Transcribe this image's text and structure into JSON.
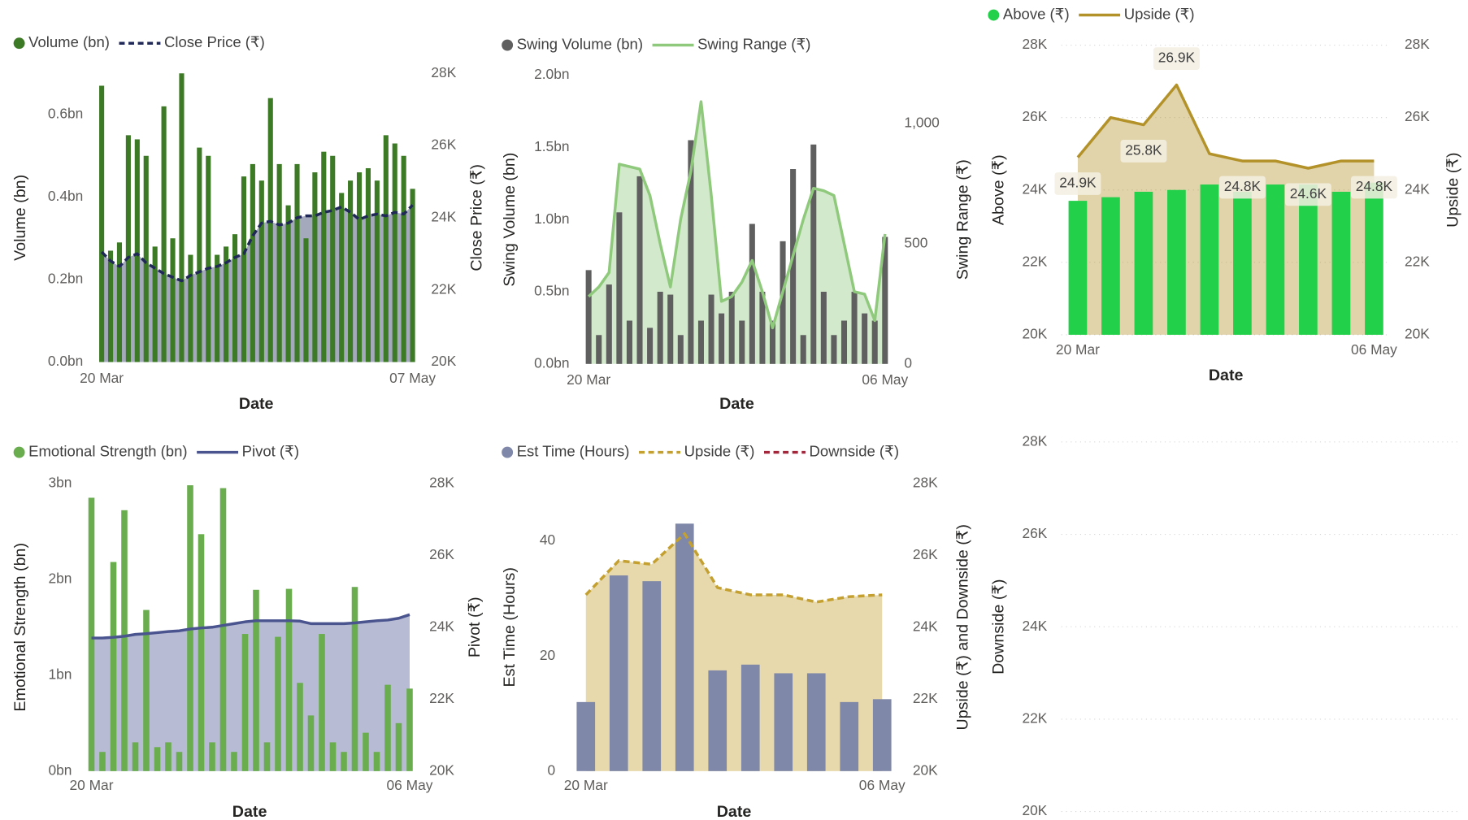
{
  "chart_data": [
    {
      "type": "combo",
      "x_label": "Date",
      "y_label": "Volume (bn)",
      "y2_label": "Close Price (₹)",
      "categories": [
        "20 Mar",
        null,
        null,
        null,
        null,
        null,
        null,
        null,
        null,
        null,
        null,
        null,
        null,
        null,
        null,
        null,
        null,
        null,
        null,
        null,
        null,
        null,
        null,
        null,
        null,
        null,
        null,
        null,
        null,
        null,
        null,
        null,
        null,
        null,
        null,
        "07 May"
      ],
      "ylim": [
        0,
        0.7
      ],
      "yticks": [
        {
          "value": 0,
          "label": "0.0bn"
        },
        {
          "value": 0.2,
          "label": "0.2bn"
        },
        {
          "value": 0.4,
          "label": "0.4bn"
        },
        {
          "value": 0.6,
          "label": "0.6bn"
        }
      ],
      "y2lim": [
        20000,
        28000
      ],
      "y2ticks": [
        {
          "value": 20000,
          "label": "20K"
        },
        {
          "value": 22000,
          "label": "22K"
        },
        {
          "value": 24000,
          "label": "24K"
        },
        {
          "value": 26000,
          "label": "26K"
        },
        {
          "value": 28000,
          "label": "28K"
        }
      ],
      "series": [
        {
          "name": "Volume (bn)",
          "kind": "bar",
          "color": "#3d7a26",
          "values": [
            0.67,
            0.27,
            0.29,
            0.55,
            0.54,
            0.5,
            0.28,
            0.62,
            0.3,
            0.7,
            0.26,
            0.52,
            0.5,
            0.26,
            0.28,
            0.31,
            0.45,
            0.48,
            0.44,
            0.64,
            0.48,
            0.38,
            0.48,
            0.3,
            0.46,
            0.51,
            0.5,
            0.41,
            0.44,
            0.46,
            0.47,
            0.44,
            0.55,
            0.53,
            0.5,
            0.42
          ]
        },
        {
          "name": "Close Price (₹)",
          "kind": "area",
          "dash": true,
          "axis": "y2",
          "color": "#1f2857",
          "values": [
            23050,
            22800,
            22650,
            22900,
            23000,
            22750,
            22600,
            22450,
            22350,
            22250,
            22400,
            22500,
            22600,
            22650,
            22750,
            22900,
            23000,
            23500,
            23850,
            23900,
            23800,
            23850,
            24000,
            24050,
            24050,
            24150,
            24200,
            24300,
            24150,
            23950,
            24050,
            24100,
            24050,
            24150,
            24100,
            24350
          ]
        }
      ]
    },
    {
      "type": "combo",
      "x_label": "Date",
      "y_label": "Swing Volume (bn)",
      "y2_label": "Swing Range (₹)",
      "categories": [
        "20 Mar",
        null,
        null,
        null,
        null,
        null,
        null,
        null,
        null,
        null,
        null,
        null,
        null,
        null,
        null,
        null,
        null,
        null,
        null,
        null,
        null,
        null,
        null,
        null,
        null,
        null,
        null,
        null,
        null,
        "06 May"
      ],
      "ylim": [
        0,
        2
      ],
      "yticks": [
        {
          "value": 0,
          "label": "0.0bn"
        },
        {
          "value": 0.5,
          "label": "0.5bn"
        },
        {
          "value": 1,
          "label": "1.0bn"
        },
        {
          "value": 1.5,
          "label": "1.5bn"
        },
        {
          "value": 2,
          "label": "2.0bn"
        }
      ],
      "y2lim": [
        0,
        1200
      ],
      "y2ticks": [
        0,
        500,
        {
          "value": 1000,
          "label": "1,000"
        }
      ],
      "series": [
        {
          "name": "Swing Volume (bn)",
          "kind": "bar",
          "color": "#5f5f5f",
          "values": [
            0.65,
            0.2,
            0.55,
            1.05,
            0.3,
            1.3,
            0.25,
            0.5,
            0.48,
            0.2,
            1.55,
            0.3,
            0.48,
            0.35,
            0.5,
            0.3,
            0.97,
            0.5,
            0.3,
            0.85,
            1.35,
            0.2,
            1.52,
            0.5,
            0.2,
            0.3,
            0.5,
            0.35,
            0.3,
            0.88
          ]
        },
        {
          "name": "Swing Range (₹)",
          "kind": "area",
          "axis": "y2",
          "color": "#8fc97c",
          "values": [
            280,
            320,
            380,
            830,
            820,
            810,
            700,
            500,
            320,
            600,
            800,
            1090,
            700,
            260,
            280,
            340,
            430,
            300,
            150,
            300,
            450,
            600,
            730,
            720,
            700,
            500,
            300,
            290,
            180,
            540
          ]
        }
      ]
    },
    {
      "type": "combo",
      "x_label": "Date",
      "y_label": "Above (₹)",
      "y2_label": "Upside (₹)",
      "grid": true,
      "categories": [
        "20 Mar",
        null,
        null,
        null,
        null,
        null,
        null,
        null,
        null,
        "06 May"
      ],
      "ylim": [
        20000,
        28000
      ],
      "yticks": [
        {
          "value": 20000,
          "label": "20K"
        },
        {
          "value": 22000,
          "label": "22K"
        },
        {
          "value": 24000,
          "label": "24K"
        },
        {
          "value": 26000,
          "label": "26K"
        },
        {
          "value": 28000,
          "label": "28K"
        }
      ],
      "y2lim": [
        20000,
        28000
      ],
      "y2ticks": [
        {
          "value": 20000,
          "label": "20K"
        },
        {
          "value": 22000,
          "label": "22K"
        },
        {
          "value": 24000,
          "label": "24K"
        },
        {
          "value": 26000,
          "label": "26K"
        },
        {
          "value": 28000,
          "label": "28K"
        }
      ],
      "series": [
        {
          "name": "Above (₹)",
          "kind": "bar",
          "color": "#22d04a",
          "values": [
            23700,
            23800,
            23950,
            24000,
            24150,
            23950,
            24150,
            24150,
            23950,
            24200
          ]
        },
        {
          "name": "Upside (₹)",
          "kind": "area",
          "axis": "y2",
          "color": "#b3922a",
          "values": [
            24900,
            26000,
            25800,
            26900,
            25000,
            24800,
            24800,
            24600,
            24800,
            24800
          ],
          "value_labels": [
            "24.9K",
            null,
            "25.8K",
            "26.9K",
            null,
            "24.8K",
            null,
            "24.6K",
            null,
            "24.8K"
          ]
        }
      ]
    },
    {
      "type": "combo",
      "x_label": "Date",
      "y_label": "Emotional Strength (bn)",
      "y2_label": "Pivot (₹)",
      "categories": [
        "20 Mar",
        null,
        null,
        null,
        null,
        null,
        null,
        null,
        null,
        null,
        null,
        null,
        null,
        null,
        null,
        null,
        null,
        null,
        null,
        null,
        null,
        null,
        null,
        null,
        null,
        null,
        null,
        null,
        null,
        "06 May"
      ],
      "ylim": [
        0,
        3
      ],
      "yticks": [
        {
          "value": 0,
          "label": "0bn"
        },
        {
          "value": 1,
          "label": "1bn"
        },
        {
          "value": 2,
          "label": "2bn"
        },
        {
          "value": 3,
          "label": "3bn"
        }
      ],
      "y2lim": [
        20000,
        28000
      ],
      "y2ticks": [
        {
          "value": 20000,
          "label": "20K"
        },
        {
          "value": 22000,
          "label": "22K"
        },
        {
          "value": 24000,
          "label": "24K"
        },
        {
          "value": 26000,
          "label": "26K"
        },
        {
          "value": 28000,
          "label": "28K"
        }
      ],
      "series": [
        {
          "name": "Emotional Strength (bn)",
          "kind": "bar",
          "color": "#6aad4f",
          "values": [
            2.85,
            0.2,
            2.18,
            2.72,
            0.3,
            1.68,
            0.25,
            0.3,
            0.2,
            2.98,
            2.47,
            0.3,
            2.95,
            0.2,
            1.43,
            1.89,
            0.3,
            1.4,
            1.9,
            0.92,
            0.58,
            1.43,
            0.3,
            0.2,
            1.92,
            0.4,
            0.2,
            0.9,
            0.5,
            0.86
          ]
        },
        {
          "name": "Pivot (₹)",
          "kind": "area",
          "axis": "y2",
          "color": "#4a5590",
          "values": [
            23700,
            23700,
            23720,
            23750,
            23800,
            23820,
            23850,
            23880,
            23900,
            23950,
            23980,
            24000,
            24050,
            24100,
            24150,
            24180,
            24180,
            24180,
            24180,
            24170,
            24100,
            24100,
            24100,
            24100,
            24120,
            24150,
            24180,
            24200,
            24250,
            24350
          ]
        }
      ]
    },
    {
      "type": "combo",
      "x_label": "Date",
      "y_label": "Est Time (Hours)",
      "y2_label": "Upside (₹) and Downside (₹)",
      "categories": [
        "20 Mar",
        null,
        null,
        null,
        null,
        null,
        null,
        null,
        null,
        "06 May"
      ],
      "ylim": [
        0,
        50
      ],
      "yticks": [
        0,
        20,
        40
      ],
      "y2lim": [
        20000,
        28000
      ],
      "y2ticks": [
        {
          "value": 20000,
          "label": "20K"
        },
        {
          "value": 22000,
          "label": "22K"
        },
        {
          "value": 24000,
          "label": "24K"
        },
        {
          "value": 26000,
          "label": "26K"
        },
        {
          "value": 28000,
          "label": "28K"
        }
      ],
      "series": [
        {
          "name": "Est Time (Hours)",
          "kind": "bar",
          "color": "#7f88a8",
          "values": [
            12,
            34,
            33,
            43,
            17.5,
            18.5,
            17,
            17,
            12,
            12.5
          ]
        },
        {
          "name": "Upside (₹)",
          "kind": "area",
          "dash": true,
          "axis": "y2",
          "color": "#c4a030",
          "values": [
            24900,
            25850,
            25750,
            26600,
            25100,
            24900,
            24900,
            24700,
            24850,
            24900
          ]
        },
        {
          "name": "Downside (₹)",
          "kind": "line",
          "dash": true,
          "axis": "y2",
          "color": "#a3263a",
          "values": [
            null,
            null,
            null,
            null,
            null,
            null,
            null,
            null,
            null,
            null
          ]
        }
      ]
    },
    {
      "type": "line",
      "y_label": "Downside (₹)",
      "grid": true,
      "ylim": [
        20000,
        28000
      ],
      "yticks": [
        {
          "value": 20000,
          "label": "20K"
        },
        {
          "value": 22000,
          "label": "22K"
        },
        {
          "value": 24000,
          "label": "24K"
        },
        {
          "value": 26000,
          "label": "26K"
        },
        {
          "value": 28000,
          "label": "28K"
        }
      ],
      "series": []
    }
  ]
}
